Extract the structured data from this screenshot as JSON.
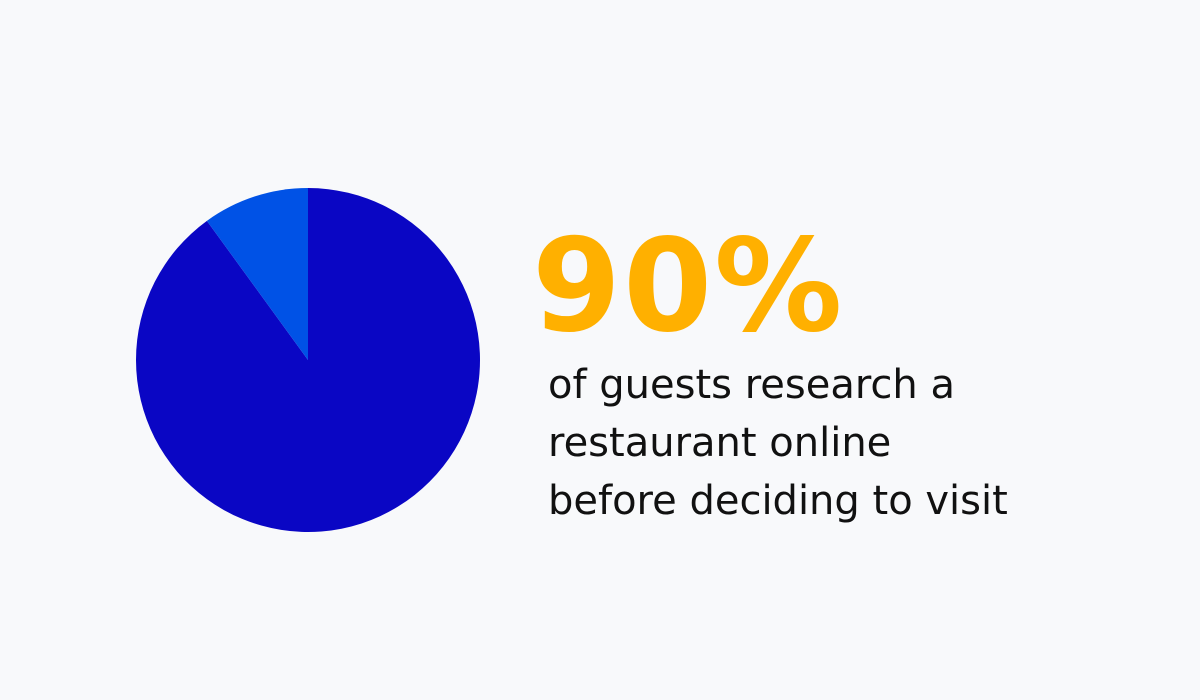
{
  "chart_data": {
    "type": "pie",
    "values": [
      90,
      10
    ],
    "colors": [
      "#0a06c4",
      "#0052e6"
    ],
    "value_labels": [
      "90%",
      null
    ],
    "start_angle": 0,
    "direction": "clockwise",
    "annotation_lines": [
      "of guests research a",
      "restaurant online",
      "before deciding to visit"
    ]
  }
}
